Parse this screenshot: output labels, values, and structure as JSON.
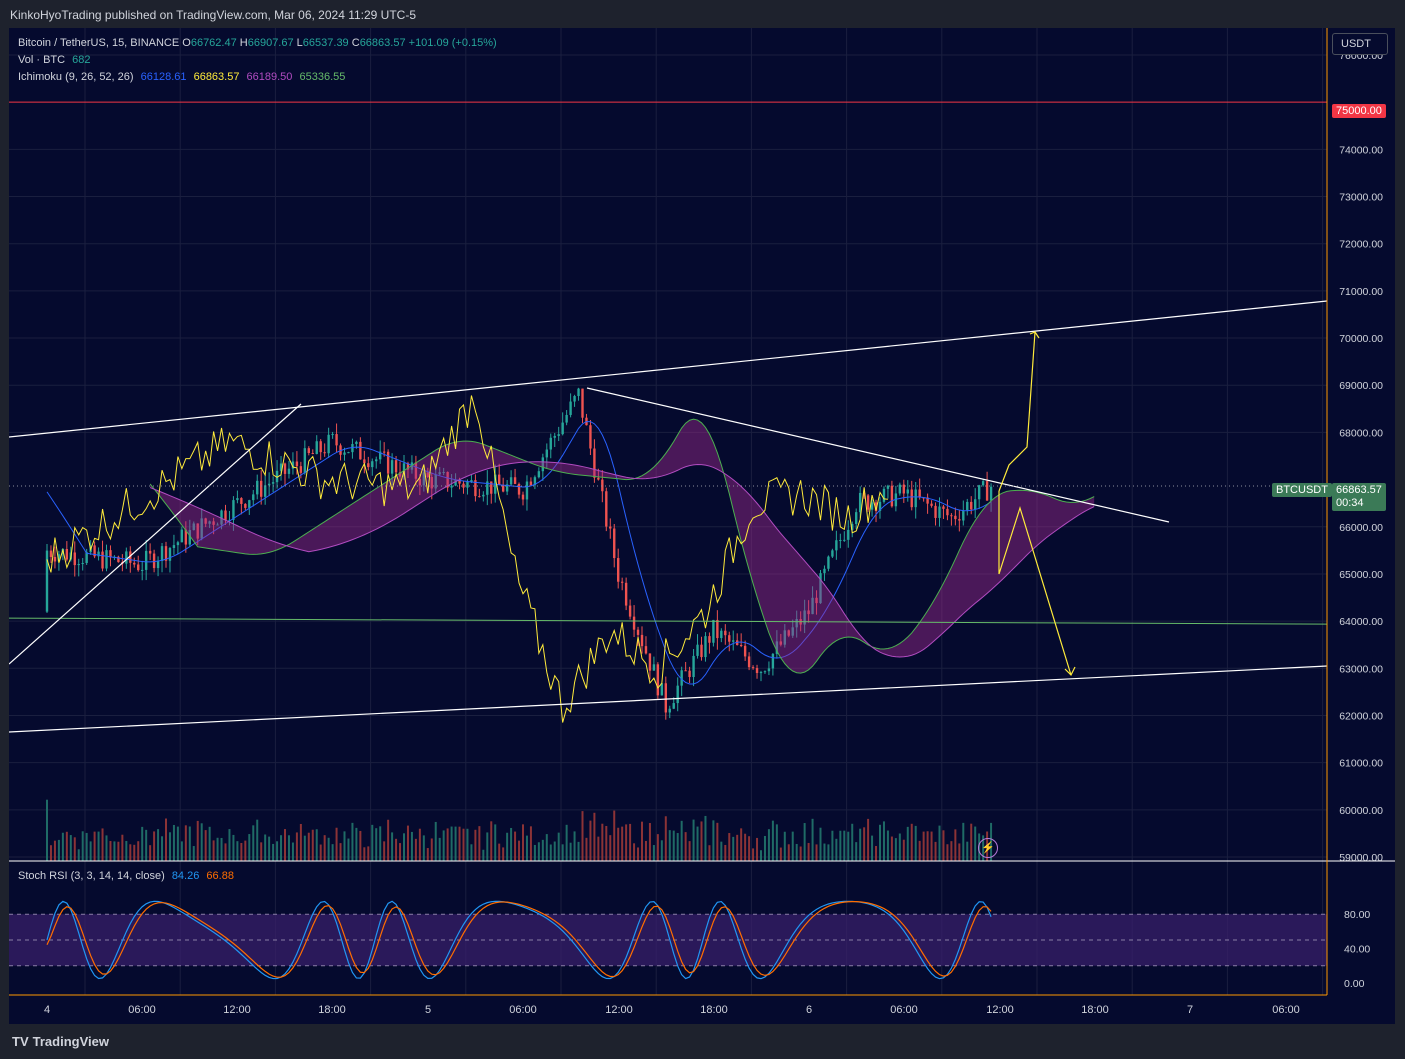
{
  "header": {
    "published": "KinkoHyoTrading published on TradingView.com, Mar 06, 2024 11:29 UTC-5"
  },
  "legend": {
    "symbol": "Bitcoin / TetherUS, 15, BINANCE",
    "ohlc": [
      {
        "k": "O",
        "v": "66762.47"
      },
      {
        "k": "H",
        "v": "66907.67"
      },
      {
        "k": "L",
        "v": "66537.39"
      },
      {
        "k": "C",
        "v": "66863.57"
      }
    ],
    "change": "+101.09 (+0.15%)",
    "volume_label": "Vol · BTC",
    "volume_value": "682",
    "ichimoku_label": "Ichimoku (9, 26, 52, 26)",
    "ichimoku_values": [
      "66128.61",
      "66863.57",
      "66189.50",
      "65336.55"
    ]
  },
  "stoch_legend": {
    "label": "Stoch RSI (3, 3, 14, 14, close)",
    "k": "84.26",
    "d": "66.88"
  },
  "currency_button": "USDT",
  "badges": {
    "red_level": "75000.00",
    "ticker": "BTCUSDT",
    "price": "66863.57",
    "countdown": "00:34"
  },
  "footer": {
    "brand": "TradingView"
  },
  "colors": {
    "background": "#050a2e",
    "up": "#26a69a",
    "down": "#ef5350",
    "tenkan": "#2962ff",
    "chikou": "#ffeb3b",
    "span_a": "#4caf50",
    "span_b": "#a02a8f",
    "stoch_k": "#2196f3",
    "stoch_d": "#ff6d00",
    "resistance": "#f23645"
  },
  "chart_data": [
    {
      "type": "candlestick",
      "title": "Bitcoin / TetherUS, 15, BINANCE",
      "y_axis_ticks": [
        "76000.00",
        "74000.00",
        "73000.00",
        "72000.00",
        "71000.00",
        "70000.00",
        "69000.00",
        "68000.00",
        "66000.00",
        "65000.00",
        "64000.00",
        "63000.00",
        "62000.00",
        "61000.00",
        "60000.00",
        "59000.00"
      ],
      "x_axis_ticks": [
        "4",
        "06:00",
        "12:00",
        "18:00",
        "5",
        "06:00",
        "12:00",
        "18:00",
        "6",
        "06:00",
        "12:00",
        "18:00",
        "7",
        "06:00"
      ],
      "ylim": [
        59000,
        76500
      ],
      "price_path_approx": [
        {
          "t": "Mar 4 00:00",
          "close": 65500
        },
        {
          "t": "Mar 4 06:00",
          "close": 65200
        },
        {
          "t": "Mar 4 12:00",
          "close": 66500
        },
        {
          "t": "Mar 4 18:00",
          "close": 67800
        },
        {
          "t": "Mar 5 00:00",
          "close": 67000
        },
        {
          "t": "Mar 5 06:00",
          "close": 66800
        },
        {
          "t": "Mar 5 09:30",
          "close": 68800
        },
        {
          "t": "Mar 5 12:00",
          "close": 65000
        },
        {
          "t": "Mar 5 15:00",
          "close": 62200
        },
        {
          "t": "Mar 5 18:00",
          "close": 63800
        },
        {
          "t": "Mar 5 21:00",
          "close": 63000
        },
        {
          "t": "Mar 6 00:00",
          "close": 64200
        },
        {
          "t": "Mar 6 03:00",
          "close": 66500
        },
        {
          "t": "Mar 6 06:00",
          "close": 66700
        },
        {
          "t": "Mar 6 09:00",
          "close": 66200
        },
        {
          "t": "Mar 6 11:29",
          "close": 66863.57
        }
      ],
      "horizontal_levels": [
        75000,
        64000
      ],
      "trendlines": "ascending channel, descending resistance, projection arrows to ~70300 and ~62900",
      "indicators": [
        "Ichimoku (9, 26, 52, 26)",
        "Volume"
      ]
    },
    {
      "type": "line",
      "title": "Stoch RSI (3, 3, 14, 14, close)",
      "y_axis_ticks": [
        "80.00",
        "40.00",
        "0.00"
      ],
      "ylim": [
        0,
        100
      ],
      "bands": [
        20,
        50,
        80
      ],
      "series": [
        {
          "name": "K",
          "last": 84.26
        },
        {
          "name": "D",
          "last": 66.88
        }
      ]
    }
  ]
}
